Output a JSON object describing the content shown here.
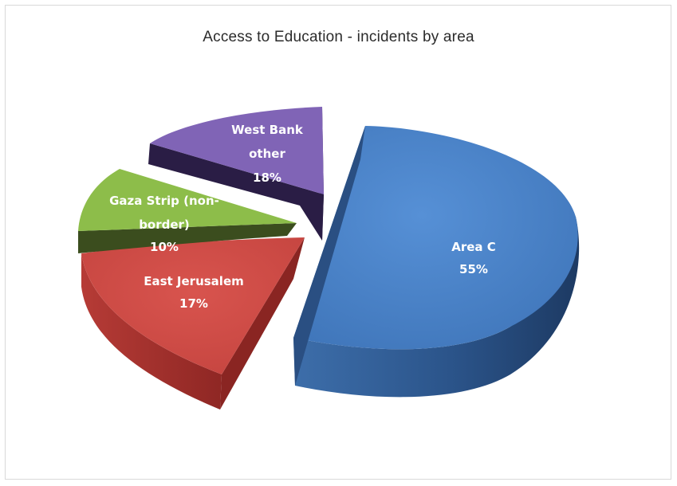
{
  "chart_data": {
    "type": "pie",
    "title": "Access to Education - incidents by area",
    "slices": [
      {
        "label_lines": [
          "Area C"
        ],
        "value_label": "55%",
        "value": 55,
        "color": "#4a7fc4",
        "side_color": "#2f5a8f",
        "dark_color": "#1f3f66"
      },
      {
        "label_lines": [
          "East Jerusalem"
        ],
        "value_label": "17%",
        "value": 17,
        "color": "#cc4a45",
        "side_color": "#a8312d",
        "dark_color": "#6e1c1a"
      },
      {
        "label_lines": [
          "Gaza Strip (non-",
          "border)"
        ],
        "value_label": "10%",
        "value": 10,
        "color": "#8dbd4a",
        "side_color": "#3d5220",
        "dark_color": "#2e3f17"
      },
      {
        "label_lines": [
          "West Bank",
          "other"
        ],
        "value_label": "18%",
        "value": 18,
        "color": "#8064b6",
        "side_color": "#3a2a5c",
        "dark_color": "#24183d"
      }
    ],
    "legend": "none",
    "exploded": true,
    "style": "3d"
  }
}
